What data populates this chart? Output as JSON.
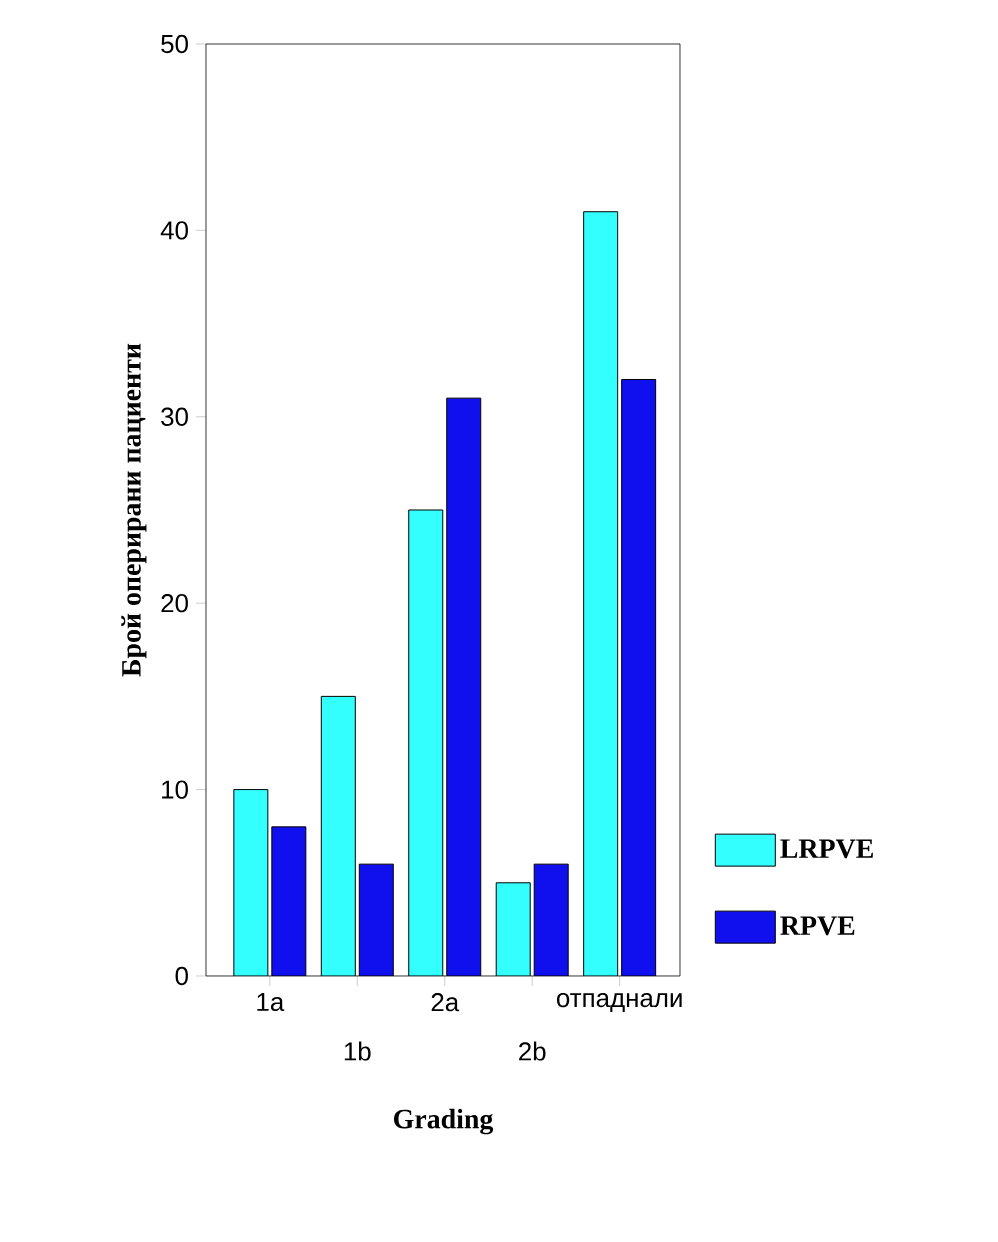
{
  "chart_data": {
    "type": "bar",
    "xlabel": "Grading",
    "ylabel": "Брой оперирани пациенти",
    "categories": [
      "1a",
      "1b",
      "2a",
      "2b",
      "отпаднали"
    ],
    "series": [
      {
        "name": "LRPVE",
        "color": "#33ffff",
        "values": [
          10,
          15,
          25,
          5,
          41
        ]
      },
      {
        "name": "RPVE",
        "color": "#1010ee",
        "values": [
          8,
          6,
          31,
          6,
          32
        ]
      }
    ],
    "ylim": [
      0,
      50
    ],
    "yticks": [
      0,
      10,
      20,
      30,
      40,
      50
    ],
    "legend": "right",
    "grid": false
  }
}
